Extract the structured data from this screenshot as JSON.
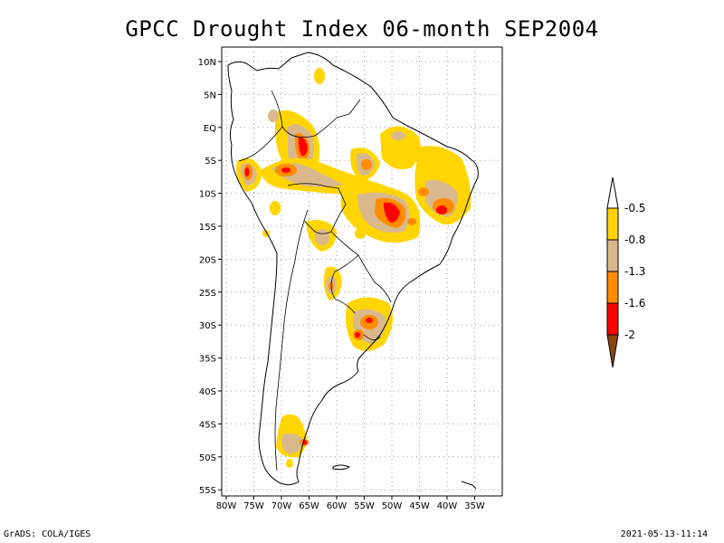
{
  "title": "GPCC Drought Index 06-month SEP2004",
  "footer": {
    "left": "GrADS: COLA/IGES",
    "right": "2021-05-13-11:14"
  },
  "map": {
    "lat_labels": [
      "10N",
      "5N",
      "EQ",
      "5S",
      "10S",
      "15S",
      "20S",
      "25S",
      "30S",
      "35S",
      "40S",
      "45S",
      "50S",
      "55S"
    ],
    "lon_labels": [
      "80W",
      "75W",
      "70W",
      "65W",
      "60W",
      "55W",
      "50W",
      "45W",
      "40W",
      "35W"
    ]
  },
  "legend": {
    "colors": [
      "#ffffff",
      "#ffd500",
      "#d9b98c",
      "#ff8c00",
      "#ff0000",
      "#8b4513"
    ],
    "labels": [
      "-0.5",
      "-0.8",
      "-1.3",
      "-1.6",
      "-2"
    ]
  }
}
